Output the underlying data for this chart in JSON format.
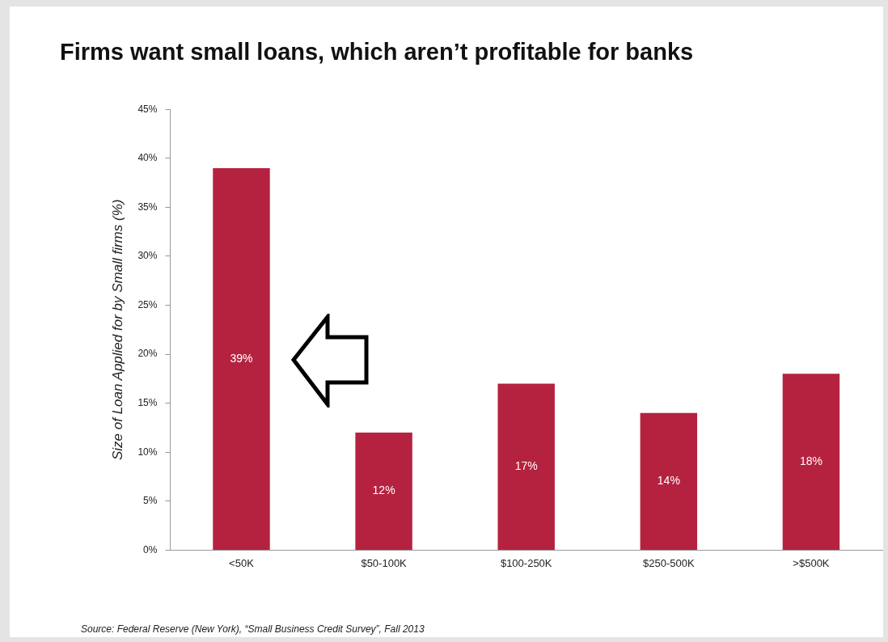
{
  "chart_data": {
    "type": "bar",
    "title": "Firms want small loans, which aren’t profitable for banks",
    "ylabel": "Size of Loan Applied for by Small firms (%)",
    "categories": [
      "<50K",
      "$50-100K",
      "$100-250K",
      "$250-500K",
      ">$500K"
    ],
    "values": [
      39,
      12,
      17,
      14,
      18
    ],
    "value_labels": [
      "39%",
      "12%",
      "17%",
      "14%",
      "18%"
    ],
    "color": "#b5223f",
    "ylim": [
      0,
      45
    ],
    "yticks": [
      {
        "value": 0,
        "label": "0%"
      },
      {
        "value": 5,
        "label": "5%"
      },
      {
        "value": 10,
        "label": "10%"
      },
      {
        "value": 15,
        "label": "15%"
      },
      {
        "value": 20,
        "label": "20%"
      },
      {
        "value": 25,
        "label": "25%"
      },
      {
        "value": 30,
        "label": "30%"
      },
      {
        "value": 35,
        "label": "35%"
      },
      {
        "value": 40,
        "label": "40%"
      },
      {
        "value": 45,
        "label": "45%"
      }
    ],
    "grid": false,
    "legend": false,
    "annotations": [
      "Source: Federal Reserve (New York), “Small Business Credit Survey”, Fall 2013"
    ]
  }
}
